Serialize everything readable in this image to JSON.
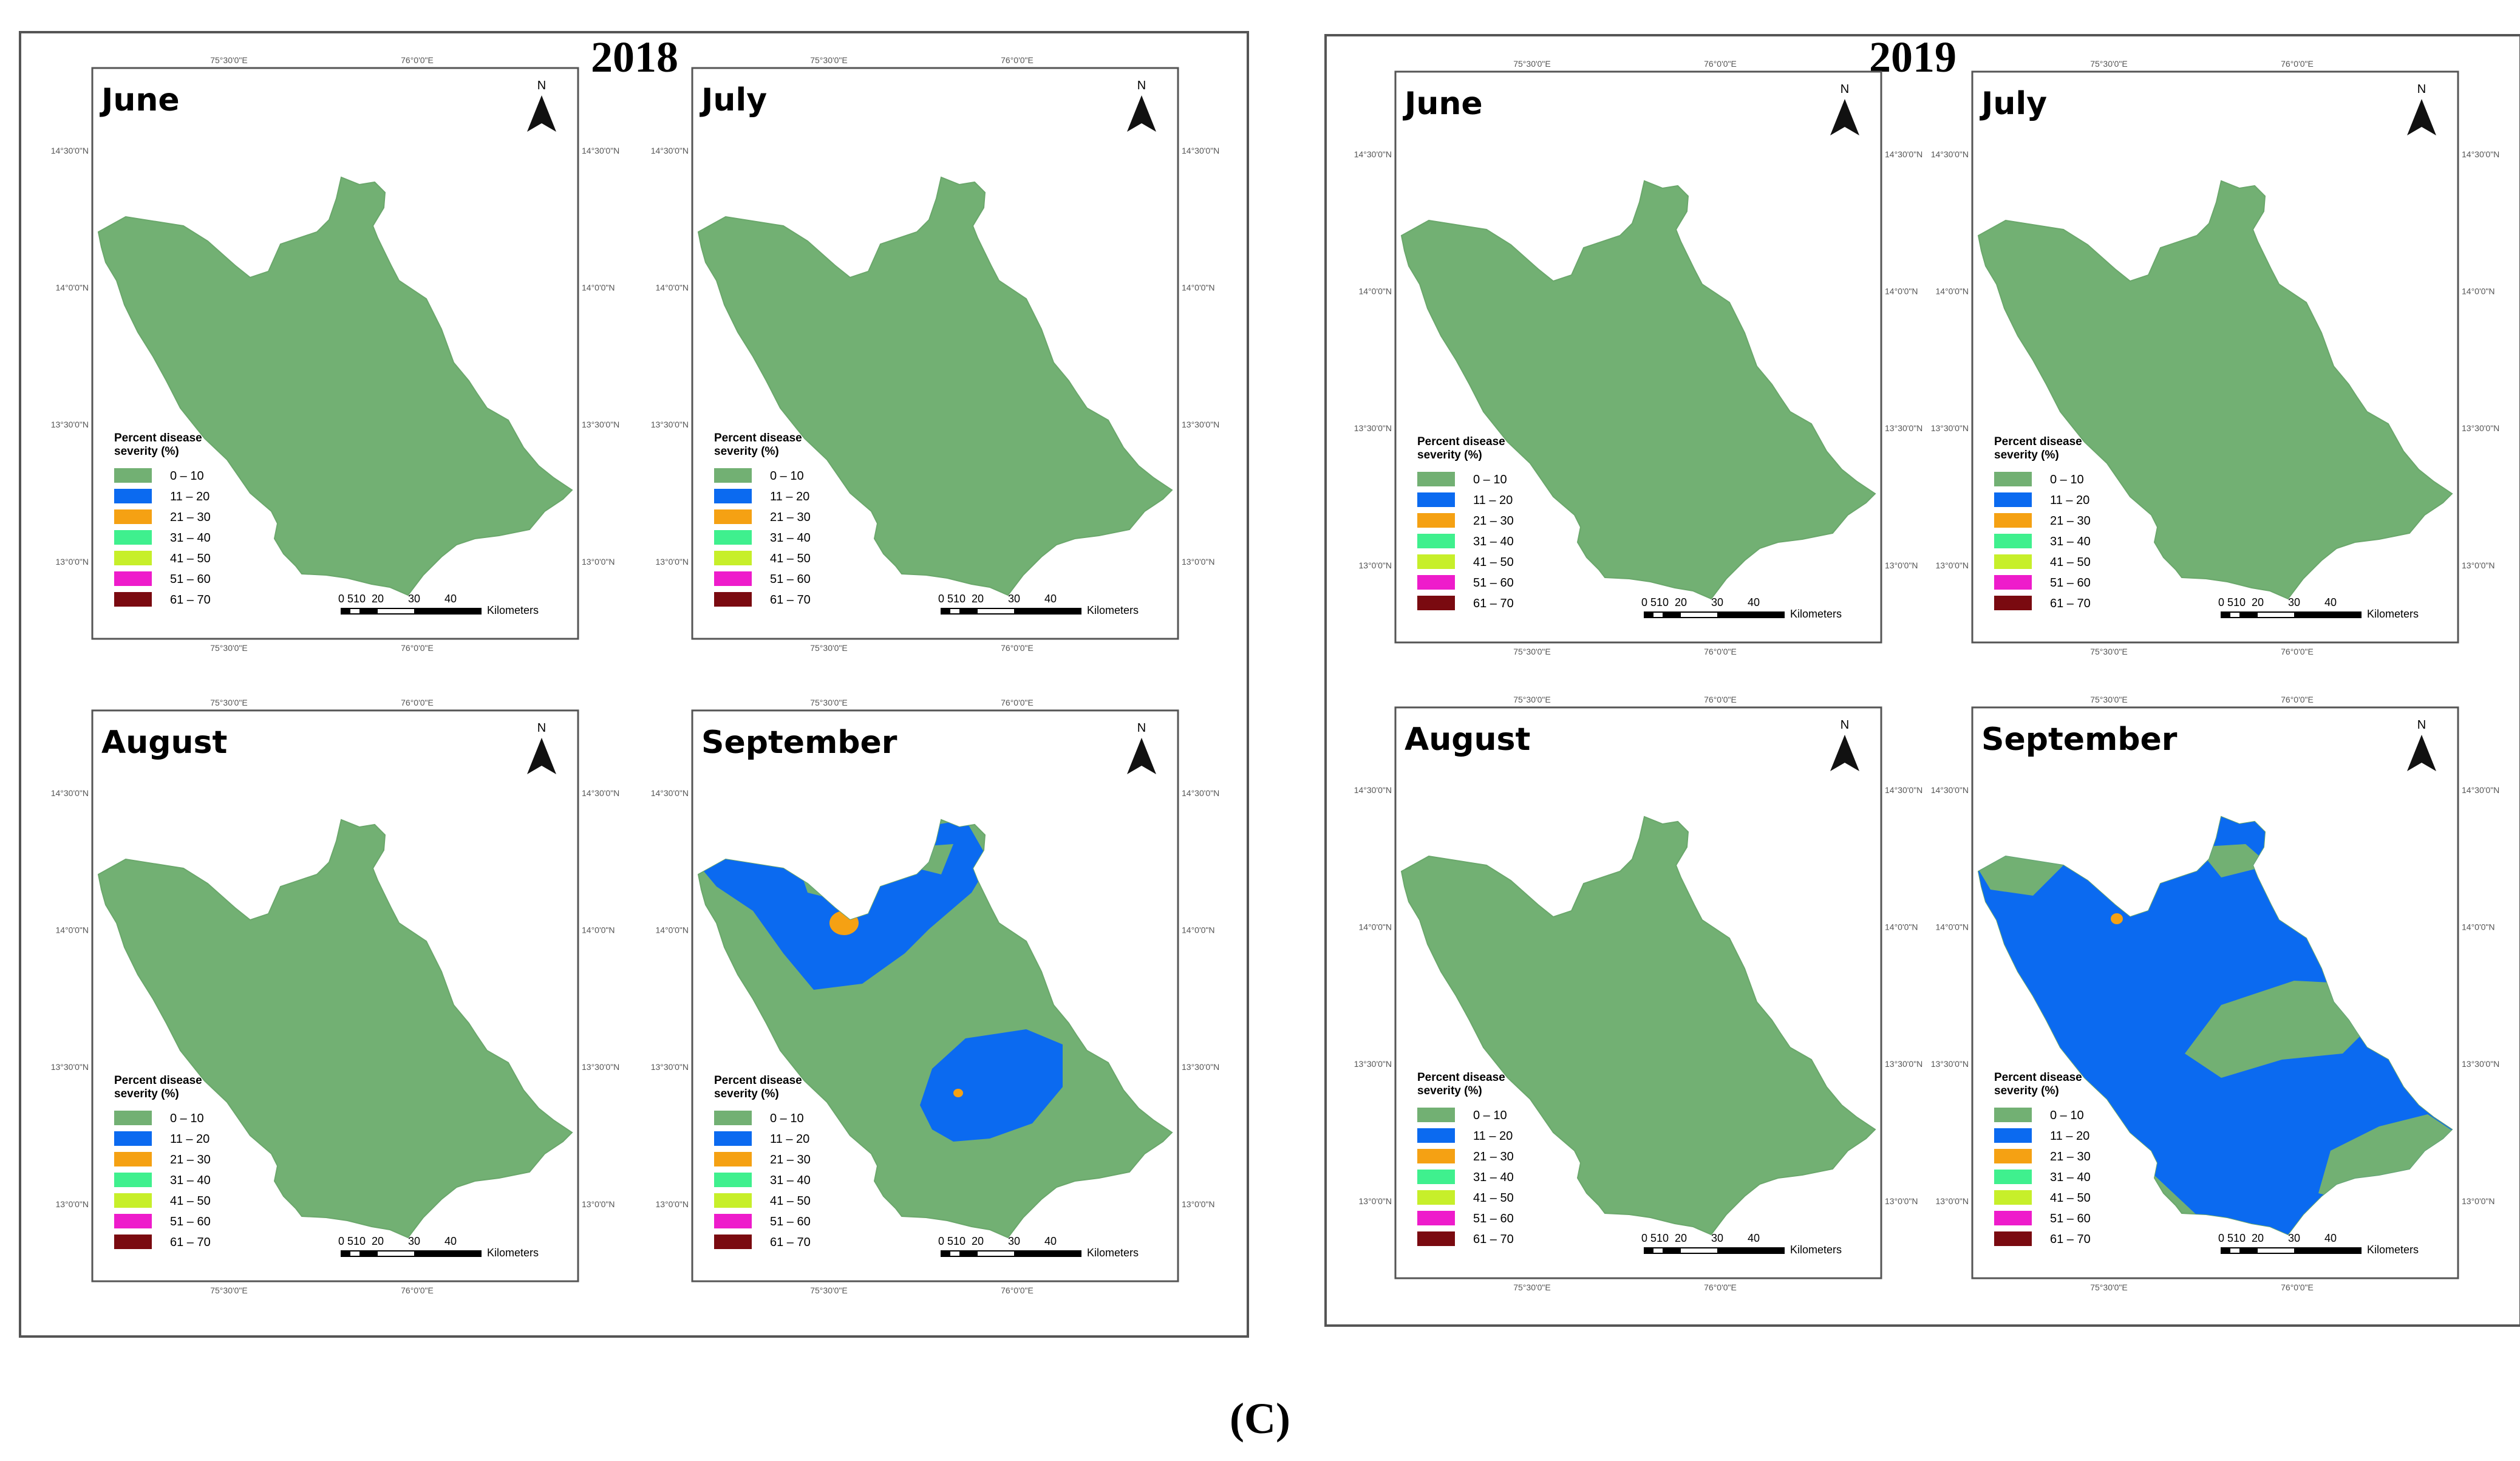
{
  "figure": {
    "caption": "(C)",
    "years": [
      {
        "label": "2018",
        "months": [
          {
            "name": "June",
            "pattern": "all-low"
          },
          {
            "name": "July",
            "pattern": "all-low"
          },
          {
            "name": "August",
            "pattern": "all-low"
          },
          {
            "name": "September",
            "pattern": "sep2018"
          }
        ]
      },
      {
        "label": "2019",
        "months": [
          {
            "name": "June",
            "pattern": "all-low"
          },
          {
            "name": "July",
            "pattern": "all-low"
          },
          {
            "name": "August",
            "pattern": "all-low"
          },
          {
            "name": "September",
            "pattern": "sep2019"
          }
        ]
      }
    ]
  },
  "legend": {
    "title_line1": "Percent disease",
    "title_line2": "severity (%)",
    "classes": [
      {
        "label": "0 – 10",
        "color": "#72b073"
      },
      {
        "label": "11 – 20",
        "color": "#0b6af0"
      },
      {
        "label": "21 – 30",
        "color": "#f5a113"
      },
      {
        "label": "31 – 40",
        "color": "#3ff08e"
      },
      {
        "label": "41 – 50",
        "color": "#c7ef2a"
      },
      {
        "label": "51 – 60",
        "color": "#ee1ccb"
      },
      {
        "label": "61 – 70",
        "color": "#7a0a10"
      }
    ]
  },
  "scale": {
    "ticks": [
      "0",
      "5",
      "10",
      "20",
      "30",
      "40"
    ],
    "unit": "Kilometers"
  },
  "north_label": "N",
  "graticule": {
    "top": [
      "75°30'0\"E",
      "76°0'0\"E"
    ],
    "bottom": [
      "75°30'0\"E",
      "76°0'0\"E"
    ],
    "side": [
      "14°30'0\"N",
      "14°0'0\"N",
      "13°30'0\"N",
      "13°0'0\"N"
    ]
  }
}
